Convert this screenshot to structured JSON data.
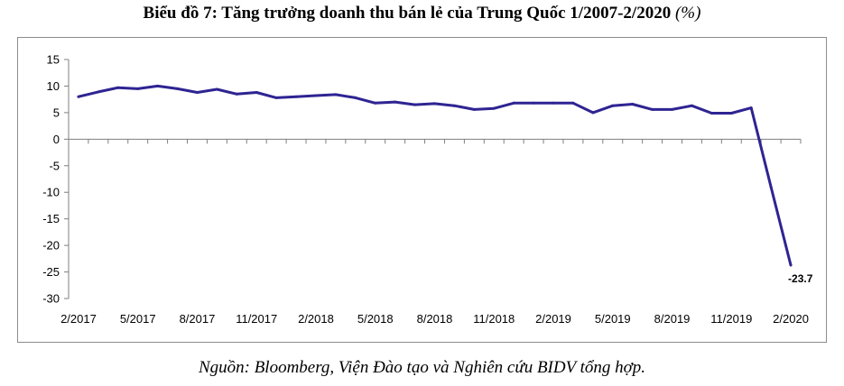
{
  "title": {
    "main": "Biểu đồ 7: Tăng trưởng doanh thu bán lẻ của Trung Quốc 1/2007-2/2020",
    "unit": "(%)"
  },
  "source": "Nguồn: Bloomberg, Viện Đào tạo và Nghiên cứu BIDV tổng hợp.",
  "colors": {
    "line": "#2e2492",
    "axis": "#7f7f7f"
  },
  "chart_data": {
    "type": "line",
    "title": "Biểu đồ 7: Tăng trưởng doanh thu bán lẻ của Trung Quốc 1/2007-2/2020 (%)",
    "xlabel": "",
    "ylabel": "",
    "ylim": [
      -30,
      15
    ],
    "yticks": [
      15,
      10,
      5,
      0,
      -5,
      -10,
      -15,
      -20,
      -25,
      -30
    ],
    "grid": false,
    "legend": "none",
    "x": [
      "2/2017",
      "3/2017",
      "4/2017",
      "5/2017",
      "6/2017",
      "7/2017",
      "8/2017",
      "9/2017",
      "10/2017",
      "11/2017",
      "12/2017",
      "1/2018",
      "2/2018",
      "3/2018",
      "4/2018",
      "5/2018",
      "6/2018",
      "7/2018",
      "8/2018",
      "9/2018",
      "10/2018",
      "11/2018",
      "12/2018",
      "1/2019",
      "2/2019",
      "3/2019",
      "4/2019",
      "5/2019",
      "6/2019",
      "7/2019",
      "8/2019",
      "9/2019",
      "10/2019",
      "11/2019",
      "12/2019",
      "1/2020",
      "2/2020"
    ],
    "xtick_labels": [
      "2/2017",
      "5/2017",
      "8/2017",
      "11/2017",
      "2/2018",
      "5/2018",
      "8/2018",
      "11/2018",
      "2/2019",
      "5/2019",
      "8/2019",
      "11/2019",
      "2/2020"
    ],
    "series": [
      {
        "values": [
          8.0,
          8.9,
          9.7,
          9.5,
          10.0,
          9.5,
          8.8,
          9.4,
          8.5,
          8.8,
          7.8,
          8.0,
          8.2,
          8.4,
          7.8,
          6.8,
          7.0,
          6.5,
          6.7,
          6.3,
          5.6,
          5.8,
          6.8,
          6.8,
          6.8,
          6.8,
          5.0,
          6.3,
          6.6,
          5.6,
          5.6,
          6.3,
          4.9,
          4.9,
          5.9,
          -9.0,
          -23.7
        ]
      }
    ],
    "data_labels": [
      {
        "x": "2/2020",
        "text": "-23.7"
      }
    ]
  }
}
